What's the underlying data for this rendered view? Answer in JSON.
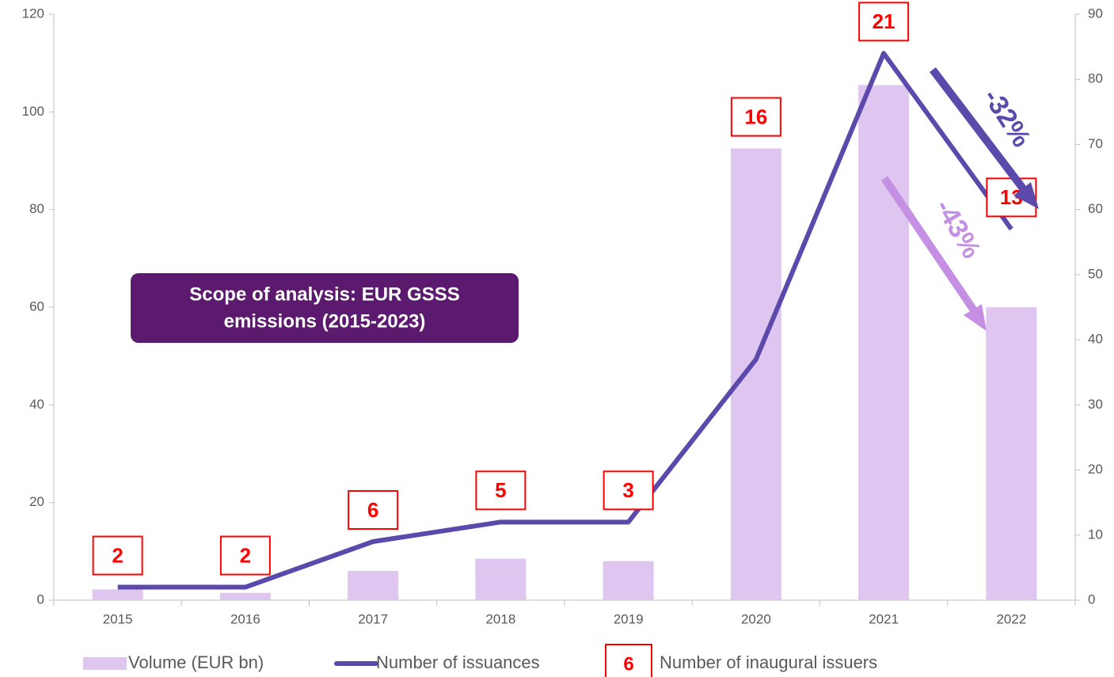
{
  "chart_data": {
    "type": "combo",
    "categories": [
      "2015",
      "2016",
      "2017",
      "2018",
      "2019",
      "2020",
      "2021",
      "2022"
    ],
    "series": [
      {
        "name": "Volume (EUR bn)",
        "type": "bar",
        "color": "#dfc6f0",
        "values": [
          2.2,
          1.5,
          6,
          8.5,
          8,
          92.5,
          105.5,
          60
        ]
      },
      {
        "name": "Number of issuances",
        "type": "line",
        "axis": "y2",
        "color": "#5b4aab",
        "values": [
          2,
          2,
          9,
          12,
          12,
          37,
          84,
          57
        ]
      }
    ],
    "inaugural_issuers": {
      "values": [
        2,
        2,
        6,
        5,
        3,
        16,
        21,
        13
      ],
      "color": "#ff0000",
      "legend_sample": "6",
      "legend_label": "Number of inaugural issuers"
    },
    "ylim": [
      0,
      120
    ],
    "yticks": [
      0,
      20,
      40,
      60,
      80,
      100,
      120
    ],
    "y2lim": [
      0,
      90
    ],
    "y2ticks": [
      0,
      10,
      20,
      30,
      40,
      50,
      60,
      70,
      80,
      90
    ],
    "annotations": [
      "-32%",
      "-43%"
    ],
    "scope_note": [
      "Scope of analysis: EUR GSSS",
      "emissions (2015-2023)"
    ]
  }
}
